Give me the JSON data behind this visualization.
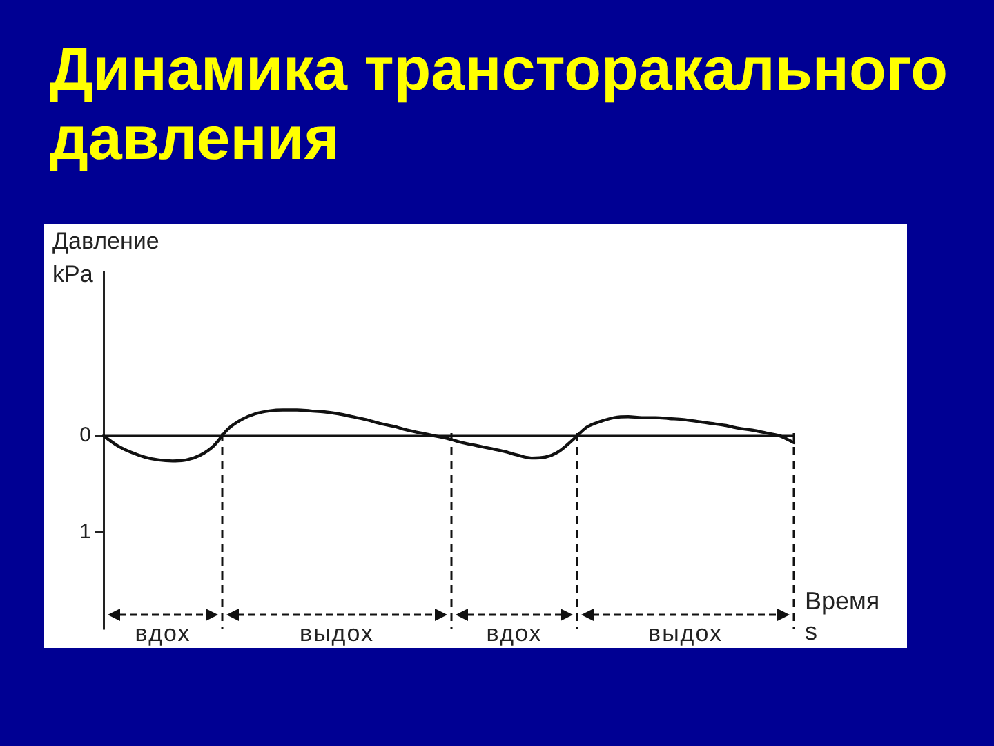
{
  "chart_data": {
    "type": "line",
    "title": "Динамика трансторакального давления",
    "ylabel": "Давление\nkPa",
    "xlabel": "Время\ns",
    "categories": [
      null,
      null,
      null,
      null,
      null,
      null,
      null,
      null,
      null,
      null,
      null,
      null,
      null,
      null,
      null,
      null,
      null,
      null,
      null,
      null,
      null,
      null,
      null,
      null,
      null,
      null,
      null,
      null,
      null,
      null,
      null,
      null,
      null,
      null,
      null,
      null,
      null,
      null,
      null,
      null,
      null,
      null,
      null,
      null,
      null,
      null,
      null,
      null,
      null,
      null,
      null
    ],
    "series": [
      {
        "color": "#111111",
        "values": [
          0,
          0.1,
          0.17,
          0.22,
          0.25,
          0.26,
          0.25,
          0.2,
          0.1,
          -0.07,
          -0.17,
          -0.23,
          -0.26,
          -0.27,
          -0.27,
          -0.26,
          -0.25,
          -0.23,
          -0.2,
          -0.17,
          -0.13,
          -0.1,
          -0.06,
          -0.03,
          0,
          0.03,
          0.07,
          0.1,
          0.13,
          0.16,
          0.2,
          0.23,
          0.22,
          0.16,
          0.04,
          -0.09,
          -0.15,
          -0.19,
          -0.2,
          -0.19,
          -0.19,
          -0.18,
          -0.17,
          -0.15,
          -0.13,
          -0.11,
          -0.08,
          -0.06,
          -0.03,
          0,
          0.07
        ]
      }
    ],
    "ylim": [
      2,
      -1.7
    ],
    "yticks": [
      0,
      1
    ],
    "ref_lines": [
      {
        "axis": "y",
        "value": 0,
        "color": "#111111"
      }
    ],
    "annotations": [
      "вдох",
      "выдох",
      "вдох",
      "выдох"
    ],
    "tick_labels": "y",
    "legend": false,
    "marker": "none"
  }
}
